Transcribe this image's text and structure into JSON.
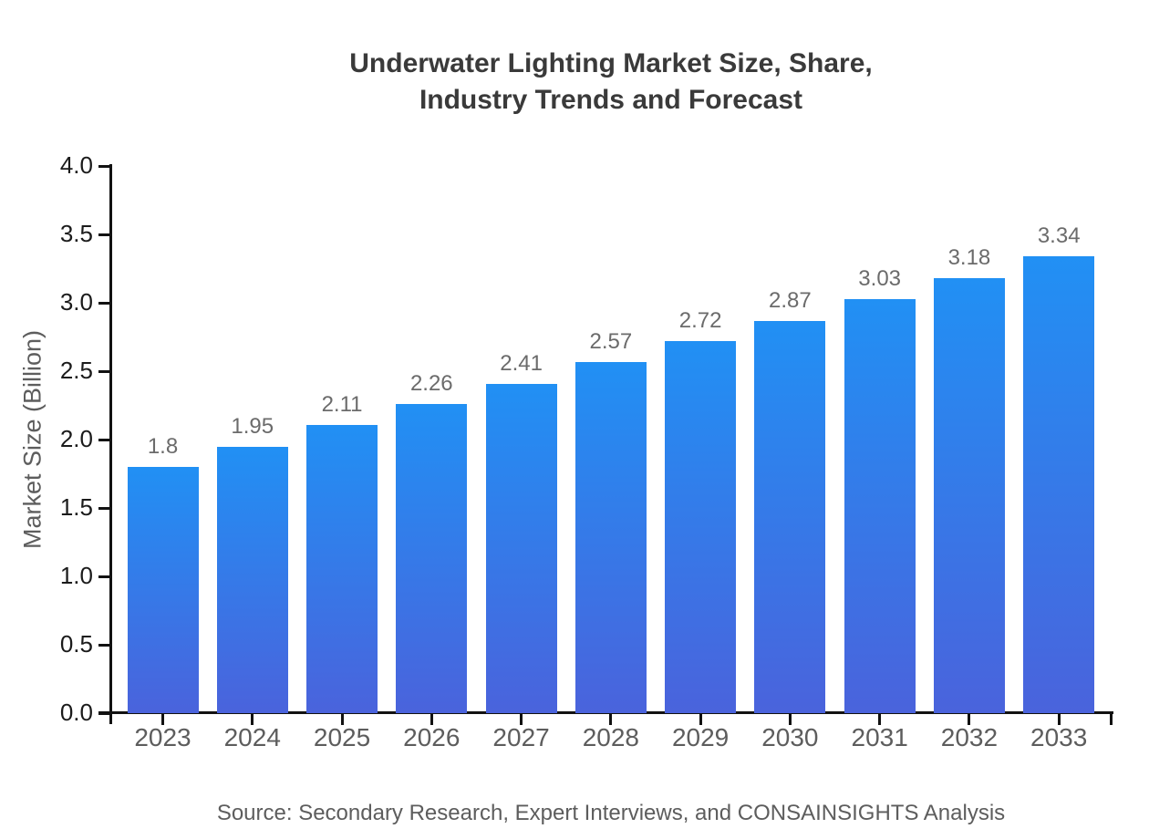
{
  "chart_data": {
    "type": "bar",
    "title": "Underwater Lighting Market Size, Share, Industry Trends and Forecast",
    "title_line1": "Underwater Lighting Market Size, Share,",
    "title_line2": "Industry Trends and Forecast",
    "xlabel": "",
    "ylabel": "Market Size (Billion)",
    "categories": [
      "2023",
      "2024",
      "2025",
      "2026",
      "2027",
      "2028",
      "2029",
      "2030",
      "2031",
      "2032",
      "2033"
    ],
    "values": [
      1.8,
      1.95,
      2.11,
      2.26,
      2.41,
      2.57,
      2.72,
      2.87,
      3.03,
      3.18,
      3.34
    ],
    "value_labels": [
      "1.8",
      "1.95",
      "2.11",
      "2.26",
      "2.41",
      "2.57",
      "2.72",
      "2.87",
      "3.03",
      "3.18",
      "3.34"
    ],
    "ylim": [
      0.0,
      4.0
    ],
    "ytick_step": 0.5,
    "ytick_labels": [
      "0.0",
      "0.5",
      "1.0",
      "1.5",
      "2.0",
      "2.5",
      "3.0",
      "3.5",
      "4.0"
    ],
    "grid": false,
    "legend": false,
    "background_color": "#ffffff",
    "bar_gradient_top": "#2190F4",
    "bar_gradient_bottom": "#4A63DC",
    "axis_color": "#121212",
    "title_color": "#3a3a3a",
    "tick_label_color": "#1b1b1b",
    "category_label_color": "#5d5d5d",
    "value_label_color": "#6b6b6b",
    "source": "Source: Secondary Research, Expert Interviews, and CONSAINSIGHTS Analysis"
  }
}
